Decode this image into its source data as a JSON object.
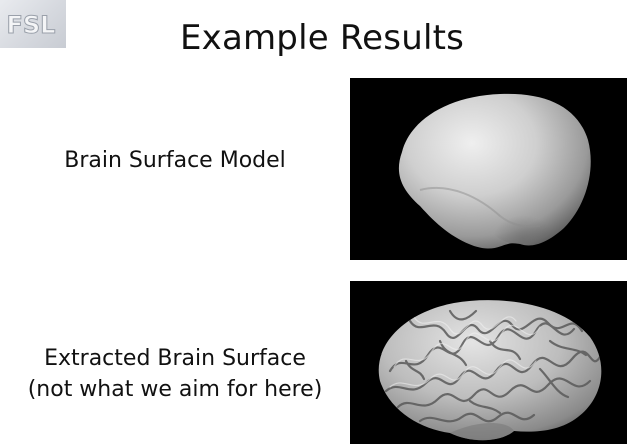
{
  "logo": {
    "text": "FSL"
  },
  "slide": {
    "title": "Example Results"
  },
  "results": [
    {
      "label_line1": "Brain Surface Model",
      "label_line2": ""
    },
    {
      "label_line1": "Extracted Brain Surface",
      "label_line2": "(not what we aim for here)"
    }
  ],
  "colors": {
    "background": "#ffffff",
    "text": "#111111",
    "panel": "#000000",
    "surface": "#c9c9c9"
  }
}
